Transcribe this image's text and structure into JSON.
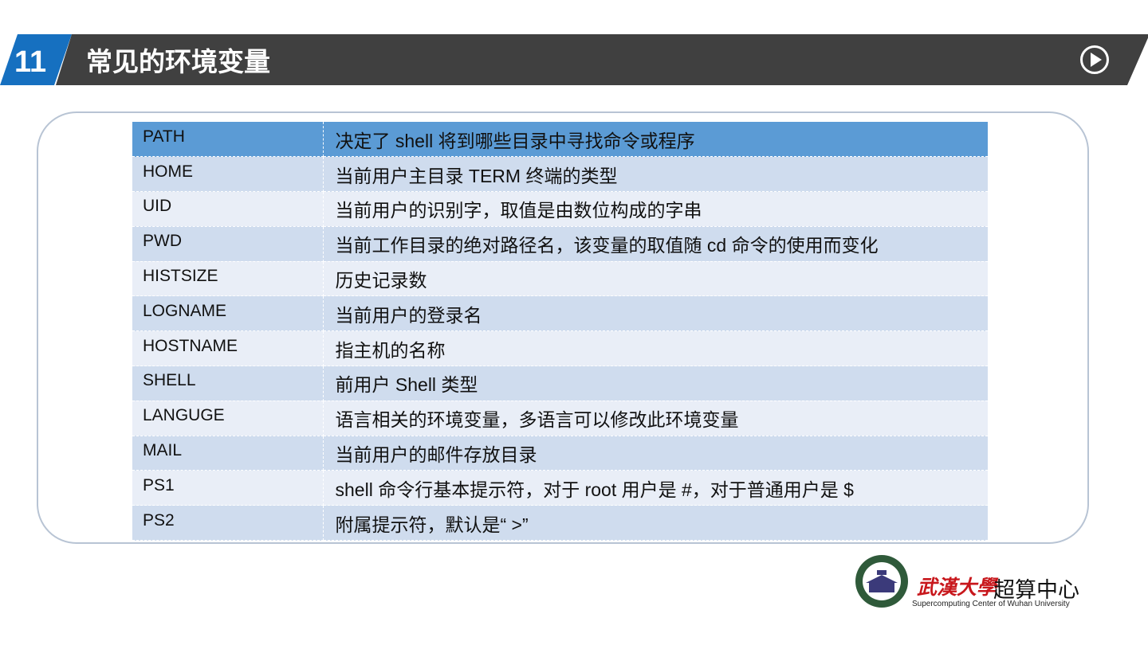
{
  "header": {
    "number": "11",
    "title": "常见的环境变量",
    "play_icon": "play-circle-icon"
  },
  "colors": {
    "accent_blue": "#1670c0",
    "header_bar": "#404040",
    "table_header": "#5b9bd5",
    "row_odd": "#cfdcee",
    "row_even": "#e9eef7",
    "logo_red": "#c8171c"
  },
  "table": {
    "rows": [
      {
        "name": "PATH",
        "desc": "决定了 shell 将到哪些目录中寻找命令或程序"
      },
      {
        "name": "HOME",
        "desc": "当前用户主目录 TERM 终端的类型"
      },
      {
        "name": "UID",
        "desc": "当前用户的识别字，取值是由数位构成的字串"
      },
      {
        "name": "PWD",
        "desc": "当前工作目录的绝对路径名，该变量的取值随 cd 命令的使用而变化"
      },
      {
        "name": "HISTSIZE",
        "desc": "历史记录数"
      },
      {
        "name": "LOGNAME",
        "desc": "当前用户的登录名"
      },
      {
        "name": "HOSTNAME",
        "desc": "指主机的名称"
      },
      {
        "name": "SHELL",
        "desc": "前用户 Shell 类型"
      },
      {
        "name": "LANGUGE",
        "desc": "语言相关的环境变量，多语言可以修改此环境变量"
      },
      {
        "name": "MAIL",
        "desc": "当前用户的邮件存放目录"
      },
      {
        "name": "PS1",
        "desc": "shell 命令行基本提示符，对于 root 用户是 #，对于普通用户是 $"
      },
      {
        "name": "PS2",
        "desc": "附属提示符，默认是“ >”"
      }
    ]
  },
  "footer": {
    "logo_script": "武漢大學",
    "center_name": "超算中心",
    "english": "Supercomputing Center of Wuhan University",
    "seal_text": "WUHAN UNIVERSITY"
  }
}
